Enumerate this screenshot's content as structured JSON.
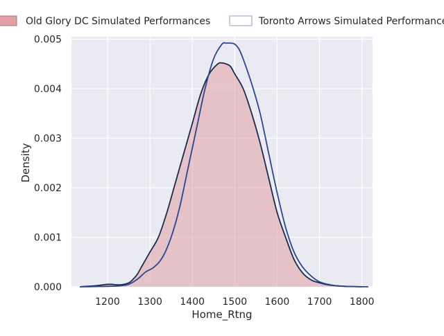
{
  "chart_data": {
    "type": "area",
    "title": "",
    "xlabel": "Home_Rtng",
    "ylabel": "Density",
    "xlim": [
      1115,
      1825
    ],
    "ylim": [
      0,
      0.00505
    ],
    "xticks": [
      1200,
      1300,
      1400,
      1500,
      1600,
      1700,
      1800
    ],
    "xtick_labels": [
      "1200",
      "1300",
      "1400",
      "1500",
      "1600",
      "1700",
      "1800"
    ],
    "yticks": [
      0,
      0.001,
      0.002,
      0.003,
      0.004,
      0.005
    ],
    "ytick_labels": [
      "0.000",
      "0.001",
      "0.002",
      "0.003",
      "0.004",
      "0.005"
    ],
    "grid": true,
    "legend_position": "top",
    "series": [
      {
        "name": "Old Glory DC Simulated Performances",
        "fill_color": "#e0a0a6",
        "fill_opacity": 0.55,
        "line_color": "#1b2a4a",
        "x": [
          1135,
          1150,
          1170,
          1190,
          1200,
          1210,
          1230,
          1250,
          1260,
          1270,
          1280,
          1300,
          1320,
          1340,
          1360,
          1380,
          1400,
          1420,
          1440,
          1460,
          1470,
          1480,
          1490,
          1500,
          1520,
          1540,
          1560,
          1580,
          1600,
          1620,
          1640,
          1660,
          1680,
          1700,
          1720,
          1740,
          1760,
          1780,
          1800
        ],
        "y": [
          0.0,
          1e-05,
          2e-05,
          4e-05,
          5e-05,
          5e-05,
          4e-05,
          8e-05,
          0.00015,
          0.00025,
          0.0004,
          0.0007,
          0.001,
          0.0015,
          0.0021,
          0.0027,
          0.0033,
          0.0039,
          0.0043,
          0.0045,
          0.00452,
          0.0045,
          0.00445,
          0.0043,
          0.004,
          0.0035,
          0.0029,
          0.0022,
          0.0015,
          0.001,
          0.00055,
          0.00028,
          0.00014,
          8e-05,
          4e-05,
          2e-05,
          1e-05,
          5e-06,
          0.0
        ]
      },
      {
        "name": "Toronto Arrows Simulated Performances",
        "line_color": "#2a4590",
        "x": [
          1135,
          1170,
          1200,
          1230,
          1250,
          1270,
          1290,
          1310,
          1330,
          1350,
          1370,
          1390,
          1410,
          1430,
          1450,
          1470,
          1480,
          1490,
          1500,
          1510,
          1520,
          1540,
          1560,
          1580,
          1600,
          1620,
          1640,
          1660,
          1680,
          1700,
          1720,
          1740,
          1760,
          1780,
          1800,
          1815
        ],
        "y": [
          0.0,
          5e-06,
          1e-05,
          2e-05,
          5e-05,
          0.00015,
          0.0003,
          0.0004,
          0.0006,
          0.001,
          0.0016,
          0.0024,
          0.0032,
          0.004,
          0.0046,
          0.0049,
          0.00492,
          0.00492,
          0.0049,
          0.0048,
          0.0046,
          0.0041,
          0.0035,
          0.0027,
          0.0019,
          0.0012,
          0.0007,
          0.0004,
          0.00022,
          0.0001,
          5e-05,
          2e-05,
          1e-05,
          5e-06,
          2e-06,
          0.0
        ]
      }
    ]
  }
}
